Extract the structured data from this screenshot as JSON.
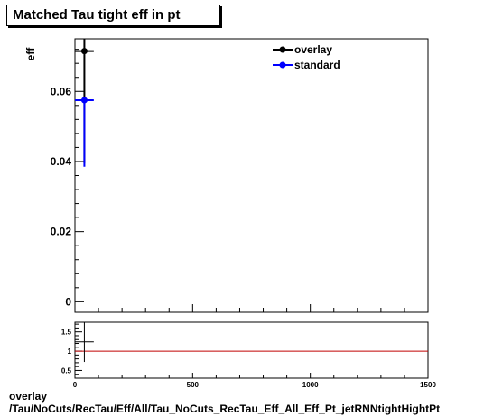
{
  "title": "Matched Tau tight eff in pt",
  "footer": {
    "line1": "overlay",
    "line2": "/Tau/NoCuts/RecTau/Eff/All/Tau_NoCuts_RecTau_Eff_All_Eff_Pt_jetRNNtightHightPt"
  },
  "colors": {
    "overlay": "#000000",
    "standard": "#0000ff",
    "ratio_line": "#c00000"
  },
  "chart_data": [
    {
      "type": "scatter",
      "title": "Matched Tau tight eff in pt",
      "ylabel": "eff",
      "xlabel": "",
      "xlim": [
        0,
        1500
      ],
      "ylim": [
        -0.003,
        0.075
      ],
      "yticks": [
        0,
        0.02,
        0.04,
        0.06
      ],
      "ytick_labels": [
        "0",
        "0.02",
        "0.04",
        "0.06"
      ],
      "legend": {
        "placement": "top-right",
        "entries": [
          "overlay",
          "standard"
        ]
      },
      "series": [
        {
          "name": "overlay",
          "points": [
            {
              "x": 40,
              "xerr": 40,
              "y": 0.0715,
              "ylow": 0.0395,
              "yhigh": 0.0755
            }
          ]
        },
        {
          "name": "standard",
          "points": [
            {
              "x": 40,
              "xerr": 40,
              "y": 0.0575,
              "ylow": 0.0385,
              "yhigh": 0.0575
            }
          ]
        }
      ]
    },
    {
      "type": "scatter",
      "title": "",
      "xlim": [
        0,
        1500
      ],
      "ylim": [
        0.3,
        1.75
      ],
      "yticks": [
        0.5,
        1,
        1.5
      ],
      "ytick_labels": [
        "0.5",
        "1",
        "1.5"
      ],
      "xticks": [
        0,
        500,
        1000,
        1500
      ],
      "xtick_labels": [
        "0",
        "500",
        "1000",
        "1500"
      ],
      "reference_line": 1,
      "points": [
        {
          "x": 40,
          "xerr": 40,
          "y": 1.24,
          "ylow": 0.72,
          "yhigh": 1.75
        }
      ]
    }
  ]
}
